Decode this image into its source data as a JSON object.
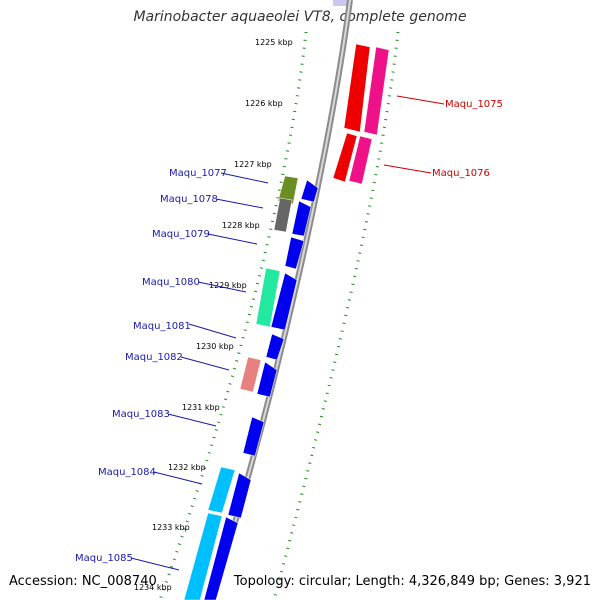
{
  "title": "Marinobacter aquaeolei VT8, complete genome",
  "accession": "Accession: NC_008740",
  "topology": "Topology: circular; Length: 4,326,849 bp; Genes: 3,921",
  "scale_ticks": [
    "1225 kbp",
    "1226 kbp",
    "1227 kbp",
    "1228 kbp",
    "1229 kbp",
    "1230 kbp",
    "1231 kbp",
    "1232 kbp",
    "1233 kbp",
    "1234 kbp"
  ],
  "gene_labels_left": [
    "Maqu_1077",
    "Maqu_1078",
    "Maqu_1079",
    "Maqu_1080",
    "Maqu_1081",
    "Maqu_1082",
    "Maqu_1083",
    "Maqu_1084",
    "Maqu_1085"
  ],
  "gene_labels_right": [
    "Maqu_1075",
    "Maqu_1076"
  ],
  "colors": {
    "backbone": "#8c8c8c",
    "tick": "#1a8a1a",
    "forward_label": "#1a1aaa",
    "reverse_label": "#cc0000",
    "gene_blue": "#0000ee",
    "gene_red": "#ee0000",
    "gene_pink": "#ee1188"
  }
}
